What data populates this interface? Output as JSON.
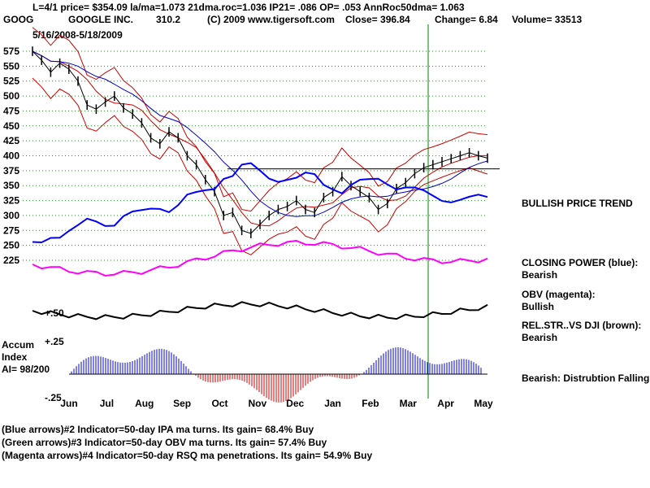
{
  "header": {
    "line1": "L=4/1  price= $354.09  la/ma=1.073 21dma.roc=1.036 IP21= .086 OP= .053 AnnRoc50dma= 1.063",
    "ticker": "GOOG",
    "company": "GOOGLE INC.",
    "code": "310.2",
    "copyright": "(C) 2009 www.tigersoft.com",
    "close": "Close=  396.84",
    "change": "Change= 6.84",
    "volume": "Volume= 33513",
    "date_range": "5/16/2008-5/18/2009"
  },
  "accum": {
    "title": "Accum",
    "index": "Index",
    "ai": "AI= 98/200"
  },
  "chart_data": {
    "type": "line",
    "title": "GOOG  GOOGLE INC.",
    "x_labels": [
      "Jun",
      "Jul",
      "Aug",
      "Sep",
      "Oct",
      "Nov",
      "Dec",
      "Jan",
      "Feb",
      "Mar",
      "Apr",
      "May"
    ],
    "y_ticks": [
      575,
      550,
      525,
      500,
      475,
      450,
      425,
      400,
      375,
      350,
      325,
      300,
      275,
      250,
      225
    ],
    "ylim": [
      215,
      590
    ],
    "price_weekly": [
      575,
      560,
      540,
      555,
      545,
      525,
      485,
      478,
      490,
      500,
      480,
      470,
      455,
      430,
      420,
      440,
      430,
      400,
      385,
      360,
      340,
      300,
      305,
      275,
      270,
      285,
      300,
      310,
      315,
      325,
      310,
      305,
      330,
      340,
      365,
      350,
      340,
      330,
      310,
      320,
      345,
      355,
      370,
      380,
      385,
      390,
      395,
      400,
      405,
      400,
      396
    ],
    "indicator_accum": {
      "upper_label": "+.25",
      "lower_label": "-.25",
      "zero_label": "+.50"
    },
    "right_panel": [
      {
        "label": "BULLISH PRICE TREND",
        "value": ""
      },
      {
        "label": "CLOSING POWER (blue):",
        "value": "Bearish"
      },
      {
        "label": "OBV (magenta):",
        "value": "Bullish"
      },
      {
        "label": "REL.STR..VS DJI (brown):",
        "value": "Bearish"
      },
      {
        "label": "Bearish: Distrubtion Falling.",
        "value": ""
      }
    ],
    "series_colors": {
      "price": "#000000",
      "bands": "#cc0000",
      "ma50": "#0000cc",
      "closing_power": "#0000ff",
      "obv": "#ff00ff",
      "rel_str": "#000000",
      "accum_pos": "#0000cc",
      "accum_neg": "#cc0000",
      "marker": "#008000"
    }
  },
  "footer": [
    "(Blue arrows)#2 Indicator=50-day IPA ma turns. Its gain= 68.4% Buy",
    "(Green arrows)#3 Indicator=50-day OBV ma turns. Its gain= 57.4% Buy",
    "(Magenta arrows)#4 Indicator=50-day RSQ ma penetrations. Its gain= 54.9% Buy"
  ]
}
